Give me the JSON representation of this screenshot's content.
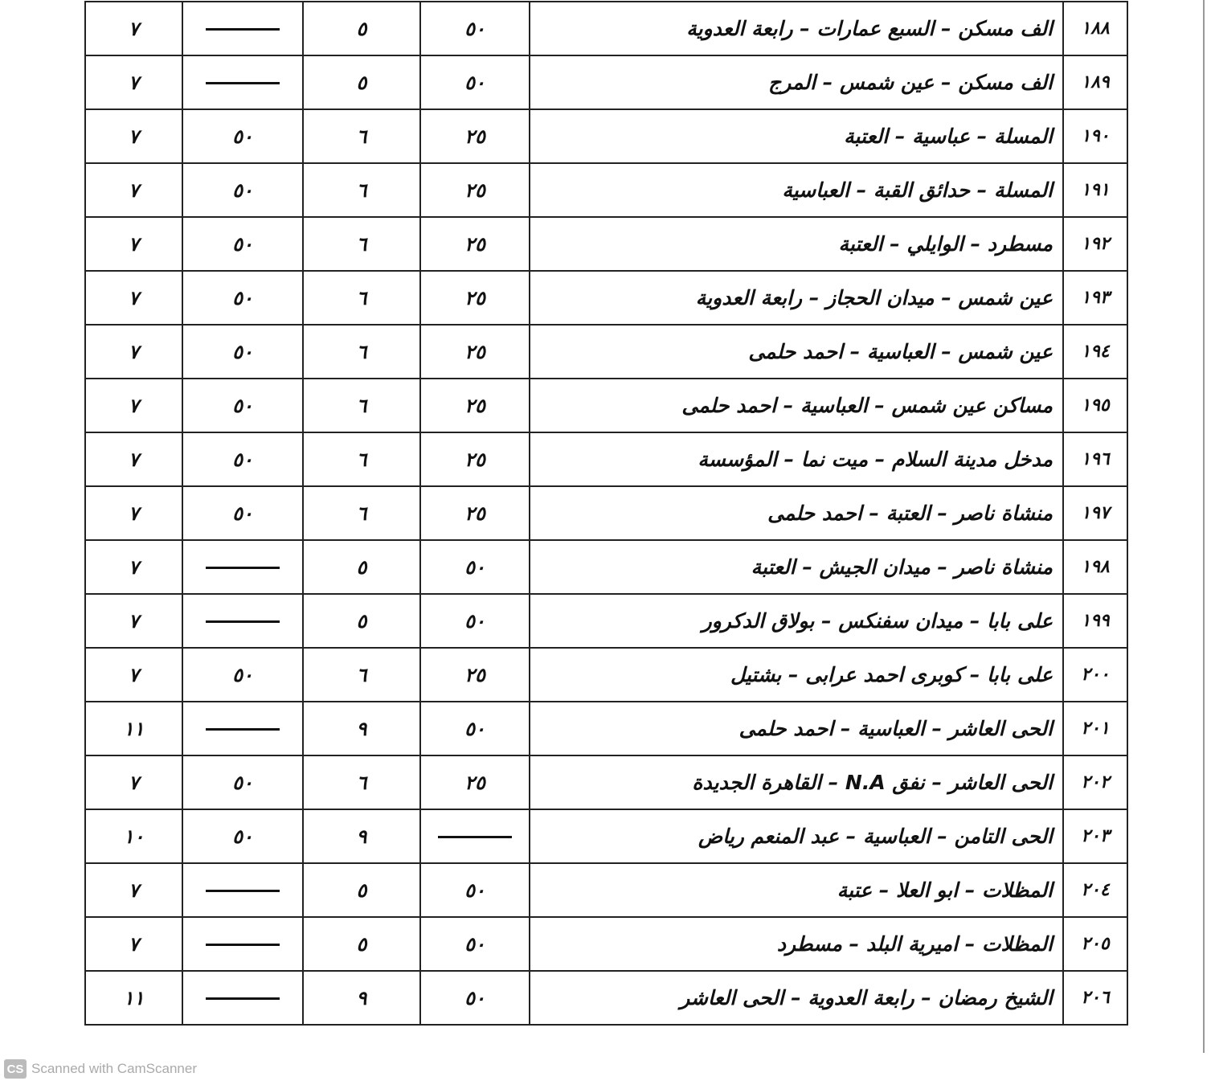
{
  "table": {
    "rows": [
      {
        "no": "١٨٨",
        "route": "الف مسكن – السبع عمارات – رابعة العدوية",
        "c3": "٥٠",
        "c4": "٥",
        "c5": "—",
        "c6": "٧"
      },
      {
        "no": "١٨٩",
        "route": "الف مسكن – عين شمس – المرج",
        "c3": "٥٠",
        "c4": "٥",
        "c5": "—",
        "c6": "٧"
      },
      {
        "no": "١٩٠",
        "route": "المسلة – عباسية – العتبة",
        "c3": "٢٥",
        "c4": "٦",
        "c5": "٥٠",
        "c6": "٧"
      },
      {
        "no": "١٩١",
        "route": "المسلة – حدائق القبة – العباسية",
        "c3": "٢٥",
        "c4": "٦",
        "c5": "٥٠",
        "c6": "٧"
      },
      {
        "no": "١٩٢",
        "route": "مسطرد – الوايلي – العتبة",
        "c3": "٢٥",
        "c4": "٦",
        "c5": "٥٠",
        "c6": "٧"
      },
      {
        "no": "١٩٣",
        "route": "عين شمس – ميدان الحجاز – رابعة العدوية",
        "c3": "٢٥",
        "c4": "٦",
        "c5": "٥٠",
        "c6": "٧"
      },
      {
        "no": "١٩٤",
        "route": "عين شمس – العباسية – احمد حلمى",
        "c3": "٢٥",
        "c4": "٦",
        "c5": "٥٠",
        "c6": "٧"
      },
      {
        "no": "١٩٥",
        "route": "مساكن عين شمس – العباسية – احمد حلمى",
        "c3": "٢٥",
        "c4": "٦",
        "c5": "٥٠",
        "c6": "٧"
      },
      {
        "no": "١٩٦",
        "route": "مدخل مدينة السلام – ميت نما – المؤسسة",
        "c3": "٢٥",
        "c4": "٦",
        "c5": "٥٠",
        "c6": "٧"
      },
      {
        "no": "١٩٧",
        "route": "منشاة ناصر – العتبة – احمد حلمى",
        "c3": "٢٥",
        "c4": "٦",
        "c5": "٥٠",
        "c6": "٧"
      },
      {
        "no": "١٩٨",
        "route": "منشاة ناصر – ميدان الجيش – العتبة",
        "c3": "٥٠",
        "c4": "٥",
        "c5": "—",
        "c6": "٧"
      },
      {
        "no": "١٩٩",
        "route": "على بابا – ميدان سفنكس – بولاق الدكرور",
        "c3": "٥٠",
        "c4": "٥",
        "c5": "—",
        "c6": "٧"
      },
      {
        "no": "٢٠٠",
        "route": "على بابا – كوبرى احمد عرابى – بشتيل",
        "c3": "٢٥",
        "c4": "٦",
        "c5": "٥٠",
        "c6": "٧"
      },
      {
        "no": "٢٠١",
        "route": "الحى العاشر – العباسية – احمد حلمى",
        "c3": "٥٠",
        "c4": "٩",
        "c5": "—",
        "c6": "١١"
      },
      {
        "no": "٢٠٢",
        "route": "الحى العاشر – نفق N.A – القاهرة الجديدة",
        "c3": "٢٥",
        "c4": "٦",
        "c5": "٥٠",
        "c6": "٧"
      },
      {
        "no": "٢٠٣",
        "route": "الحى التامن – العباسية – عبد المنعم رياض",
        "c3": "—",
        "c4": "٩",
        "c5": "٥٠",
        "c6": "١٠"
      },
      {
        "no": "٢٠٤",
        "route": "المظلات – ابو العلا – عتبة",
        "c3": "٥٠",
        "c4": "٥",
        "c5": "—",
        "c6": "٧"
      },
      {
        "no": "٢٠٥",
        "route": "المظلات – اميرية البلد – مسطرد",
        "c3": "٥٠",
        "c4": "٥",
        "c5": "—",
        "c6": "٧"
      },
      {
        "no": "٢٠٦",
        "route": "الشيخ رمضان – رابعة العدوية – الحى العاشر",
        "c3": "٥٠",
        "c4": "٩",
        "c5": "—",
        "c6": "١١"
      }
    ]
  },
  "footer": {
    "logo": "CS",
    "text": "Scanned with CamScanner"
  }
}
